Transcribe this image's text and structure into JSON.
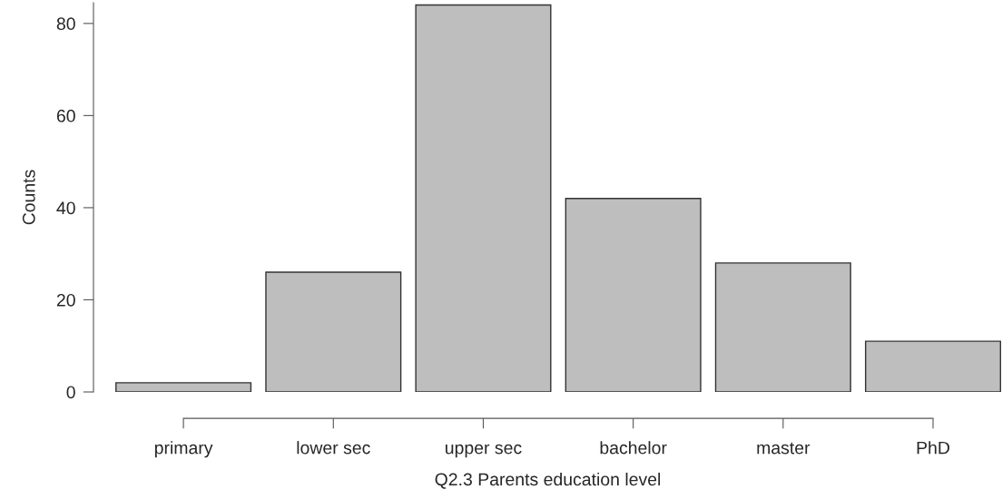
{
  "chart_data": {
    "type": "bar",
    "xlabel": "Q2.3 Parents education level",
    "ylabel": "Counts",
    "categories": [
      "primary",
      "lower sec",
      "upper sec",
      "bachelor",
      "master",
      "PhD"
    ],
    "values": [
      2,
      26,
      84,
      42,
      28,
      11
    ],
    "color": "#bebebe",
    "ylim": [
      0,
      84.5
    ],
    "yticks": [
      0,
      20,
      40,
      60,
      80
    ],
    "grid": false
  }
}
